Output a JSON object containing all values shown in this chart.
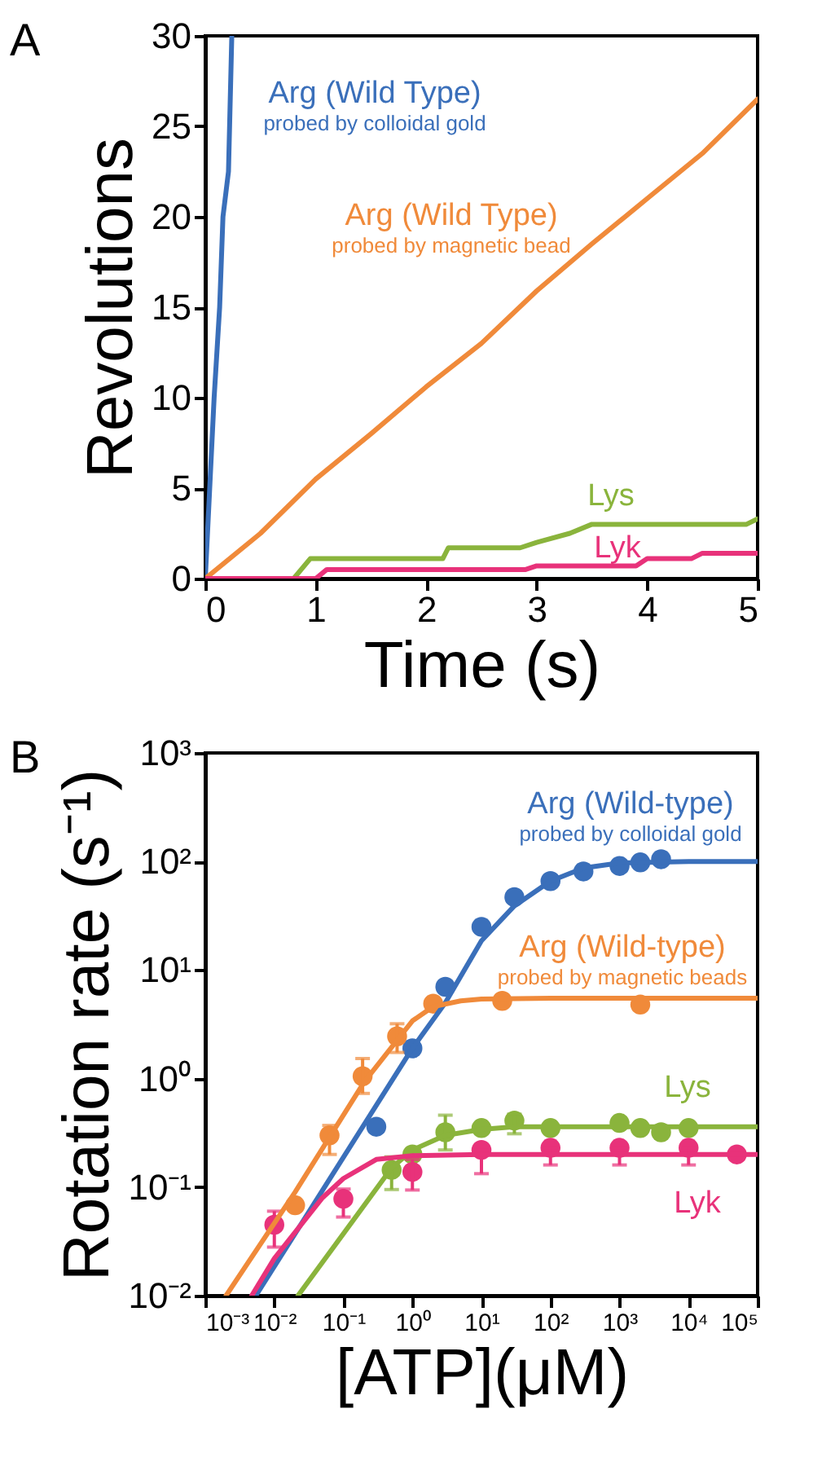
{
  "chart_data": [
    {
      "type": "line",
      "title": "A",
      "xlabel": "Time (s)",
      "ylabel": "Revolutions",
      "xlim": [
        0,
        5
      ],
      "ylim": [
        0,
        30
      ],
      "xticks": [
        0,
        1,
        2,
        3,
        4,
        5
      ],
      "yticks": [
        0,
        5,
        10,
        15,
        20,
        25,
        30
      ],
      "series": [
        {
          "name": "Arg (Wild Type)\nprobed by colloidal gold",
          "color": "#3a6fba",
          "x": [
            0,
            0.04,
            0.08,
            0.13,
            0.16,
            0.21,
            0.24
          ],
          "values": [
            0,
            5,
            10,
            15,
            20,
            22.5,
            30
          ]
        },
        {
          "name": "Arg (Wild Type)\nprobed by magnetic bead",
          "color": "#f08a3a",
          "x": [
            0,
            0.5,
            1,
            1.5,
            2,
            2.5,
            3,
            3.5,
            4,
            4.5,
            5
          ],
          "values": [
            0,
            2.5,
            5.5,
            8,
            10.6,
            13,
            15.9,
            18.5,
            21,
            23.5,
            26.5
          ]
        },
        {
          "name": "Lys",
          "color": "#8ab43c",
          "x": [
            0,
            0.8,
            0.95,
            2.15,
            2.2,
            2.85,
            3,
            3.3,
            3.5,
            4.9,
            5
          ],
          "values": [
            0,
            0,
            1.1,
            1.1,
            1.7,
            1.7,
            2,
            2.5,
            3,
            3,
            3.3
          ]
        },
        {
          "name": "Lyk",
          "color": "#e8327a",
          "x": [
            0,
            1,
            1.1,
            2.9,
            3,
            3.9,
            4,
            4.4,
            4.5,
            5
          ],
          "values": [
            0,
            0,
            0.5,
            0.5,
            0.7,
            0.7,
            1.1,
            1.1,
            1.4,
            1.4
          ]
        }
      ]
    },
    {
      "type": "scatter",
      "title": "B",
      "xlabel": "[ATP](μM)",
      "ylabel": "Rotation rate (s⁻¹)",
      "log": "xy",
      "xlim": [
        0.001,
        100000
      ],
      "ylim": [
        0.01,
        1000
      ],
      "xticks": [
        {
          "value": 0.001,
          "label": "10⁻³"
        },
        {
          "value": 0.01,
          "label": "10⁻²"
        },
        {
          "value": 0.1,
          "label": "10⁻¹"
        },
        {
          "value": 1,
          "label": "10⁰"
        },
        {
          "value": 10,
          "label": "10¹"
        },
        {
          "value": 100,
          "label": "10²"
        },
        {
          "value": 1000,
          "label": "10³"
        },
        {
          "value": 10000,
          "label": "10⁴"
        },
        {
          "value": 100000,
          "label": "10⁵"
        }
      ],
      "yticks": [
        {
          "value": 0.01,
          "label": "10⁻²"
        },
        {
          "value": 0.1,
          "label": "10⁻¹"
        },
        {
          "value": 1,
          "label": "10⁰"
        },
        {
          "value": 10,
          "label": "10¹"
        },
        {
          "value": 100,
          "label": "10²"
        },
        {
          "value": 1000,
          "label": "10³"
        }
      ],
      "series": [
        {
          "name": "Arg (Wild-type)\nprobed by colloidal gold",
          "color": "#3a6fba",
          "marker": "circle",
          "x": [
            0.3,
            1,
            3,
            10,
            30,
            100,
            300,
            1000,
            2000,
            4000
          ],
          "values": [
            0.36,
            1.9,
            7,
            25,
            47,
            66,
            81,
            91,
            98,
            105
          ]
        },
        {
          "name": "Arg (Wild-type)\nprobed by magnetic beads",
          "color": "#f08a3a",
          "marker": "circle",
          "x": [
            0.02,
            0.063,
            0.19,
            0.6,
            2,
            20,
            2000
          ],
          "values": [
            0.068,
            0.3,
            1.05,
            2.45,
            4.9,
            5.2,
            4.8
          ],
          "errors": [
            null,
            [
              0.2,
              0.37
            ],
            [
              0.73,
              1.53
            ],
            [
              1.74,
              3.2
            ],
            null,
            null,
            null
          ]
        },
        {
          "name": "Lys",
          "color": "#8ab43c",
          "marker": "circle",
          "x": [
            0.5,
            1,
            3,
            10,
            30,
            100,
            1000,
            2000,
            4000,
            10000
          ],
          "values": [
            0.144,
            0.2,
            0.32,
            0.35,
            0.41,
            0.35,
            0.39,
            0.35,
            0.32,
            0.35
          ],
          "errors": [
            [
              0.095,
              0.19
            ],
            null,
            [
              0.22,
              0.46
            ],
            null,
            [
              0.31,
              0.47
            ],
            null,
            null,
            null,
            null,
            null
          ]
        },
        {
          "name": "Lyk",
          "color": "#e8327a",
          "marker": "circle",
          "x": [
            0.01,
            0.1,
            1,
            10,
            100,
            1000,
            10000,
            50000
          ],
          "values": [
            0.045,
            0.078,
            0.138,
            0.22,
            0.23,
            0.23,
            0.23,
            0.2
          ],
          "errors": [
            [
              0.028,
              0.06
            ],
            [
              0.053,
              0.096
            ],
            [
              0.094,
              0.18
            ],
            [
              0.133,
              0.22
            ],
            [
              0.16,
              0.23
            ],
            [
              0.16,
              0.23
            ],
            [
              0.16,
              0.23
            ],
            null
          ]
        },
        {
          "type": "line",
          "color": "#3a6fba",
          "x": [
            0.0054,
            1,
            3,
            10,
            30,
            100,
            300,
            1000,
            10000,
            100000
          ],
          "values": [
            0.01,
            1.9,
            5,
            18.6,
            39,
            66,
            87,
            97,
            100,
            100
          ]
        },
        {
          "type": "line",
          "color": "#f08a3a",
          "x": [
            0.002,
            0.02,
            0.2,
            1,
            2,
            5,
            10,
            100,
            100000
          ],
          "values": [
            0.01,
            0.09,
            0.93,
            3.4,
            4.6,
            5.2,
            5.4,
            5.5,
            5.5
          ]
        },
        {
          "type": "line",
          "color": "#8ab43c",
          "x": [
            0.022,
            0.5,
            1,
            3,
            10,
            30,
            100000
          ],
          "values": [
            0.01,
            0.15,
            0.22,
            0.3,
            0.34,
            0.36,
            0.36
          ]
        },
        {
          "type": "line",
          "color": "#e8327a",
          "x": [
            0.0047,
            0.01,
            0.05,
            0.1,
            0.3,
            1,
            10,
            100000
          ],
          "values": [
            0.01,
            0.022,
            0.08,
            0.12,
            0.18,
            0.195,
            0.2,
            0.2
          ]
        }
      ]
    }
  ]
}
